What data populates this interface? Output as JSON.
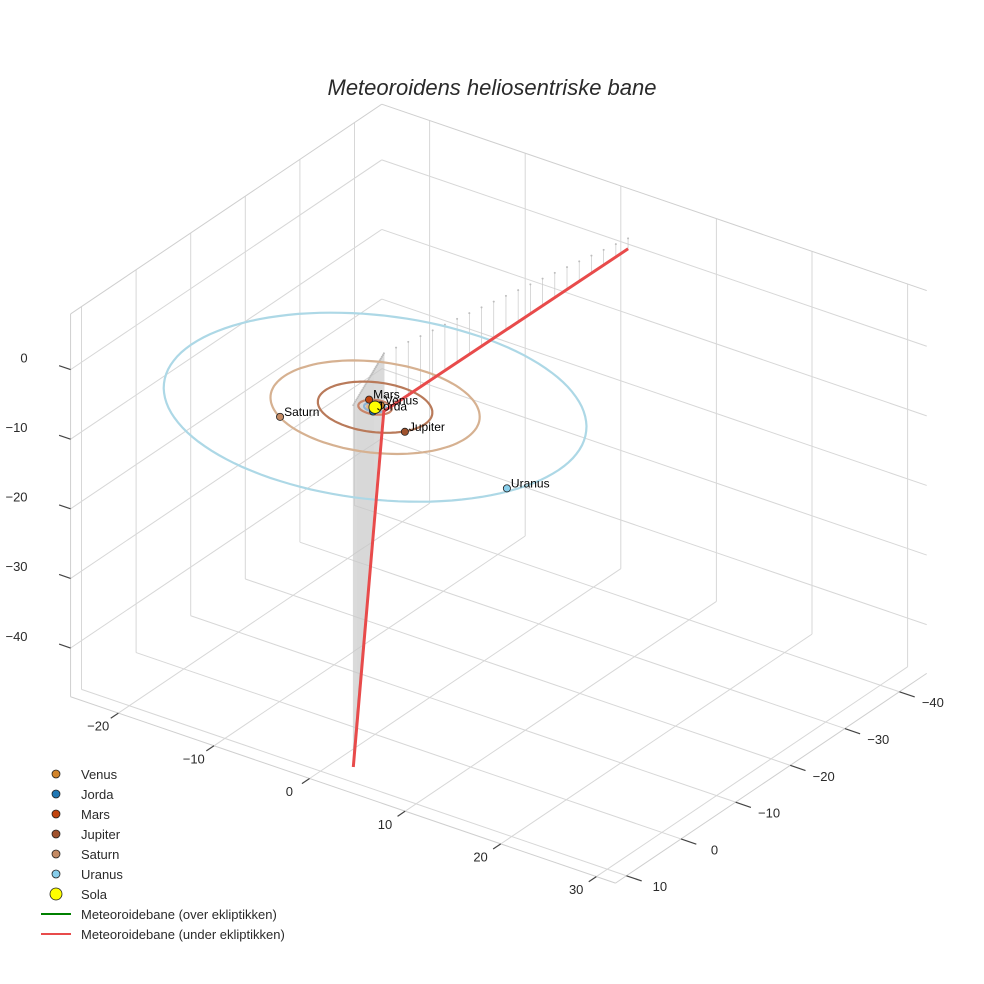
{
  "chart_data": {
    "type": "scatter3d",
    "title": "Meteoroidens heliosentriske bane",
    "axes": {
      "x": {
        "range": [
          -25,
          32
        ],
        "ticks": [
          -20,
          -10,
          0,
          10,
          20,
          30
        ]
      },
      "y": {
        "range": [
          -45,
          12
        ],
        "ticks": [
          -40,
          -30,
          -20,
          -10,
          0,
          10
        ]
      },
      "z": {
        "range": [
          -47,
          8
        ],
        "ticks": [
          -40,
          -30,
          -20,
          -10,
          0
        ]
      },
      "grid": true
    },
    "sun": {
      "name": "Sola",
      "x": 0,
      "y": 0,
      "z": 0,
      "color": "#ffff00"
    },
    "planets": [
      {
        "name": "Venus",
        "x": 0.2,
        "y": -0.7,
        "z": 0,
        "orbit_radius": 0.72,
        "color": "#d2842a"
      },
      {
        "name": "Jorda",
        "x": 0.3,
        "y": 0.9,
        "z": 0,
        "orbit_radius": 1.0,
        "color": "#1f77b4"
      },
      {
        "name": "Mars",
        "x": -1.2,
        "y": -1.0,
        "z": 0,
        "orbit_radius": 1.52,
        "color": "#c1440e"
      },
      {
        "name": "Jupiter",
        "x": 4.6,
        "y": 2.6,
        "z": 0,
        "orbit_radius": 5.2,
        "color": "#a0522d"
      },
      {
        "name": "Saturn",
        "x": -5.6,
        "y": 7.6,
        "z": 0,
        "orbit_radius": 9.5,
        "color": "#c48a63"
      },
      {
        "name": "Uranus",
        "x": 17.5,
        "y": 6.5,
        "z": 0,
        "orbit_radius": 19.2,
        "color": "#87ceeb"
      }
    ],
    "orbit_colors": {
      "Venus": "#e3b98a",
      "Jorda": "#8fb4d4",
      "Mars": "#c9856a",
      "Jupiter": "#b97a5a",
      "Saturn": "#d6b191",
      "Uranus": "#add8e6"
    },
    "trajectory_above": {
      "name": "Meteoroidebane (over ekliptikken)",
      "color": "#008000",
      "points": []
    },
    "trajectory_below": {
      "name": "Meteoroidebane (under ekliptikken)",
      "color": "#e84b4b",
      "points": [
        [
          5.9,
          -36.0,
          6.5
        ],
        [
          0.8,
          -0.2,
          -0.3
        ],
        [
          4.0,
          11.0,
          -44.0
        ]
      ]
    },
    "legend": {
      "position": "bottom-left",
      "items": [
        {
          "label": "Venus",
          "kind": "marker",
          "color": "#d2842a"
        },
        {
          "label": "Jorda",
          "kind": "marker",
          "color": "#1f77b4"
        },
        {
          "label": "Mars",
          "kind": "marker",
          "color": "#c1440e"
        },
        {
          "label": "Jupiter",
          "kind": "marker",
          "color": "#a0522d"
        },
        {
          "label": "Saturn",
          "kind": "marker",
          "color": "#c48a63"
        },
        {
          "label": "Uranus",
          "kind": "marker",
          "color": "#87ceeb"
        },
        {
          "label": "Sola",
          "kind": "big-marker",
          "color": "#ffff00"
        },
        {
          "label": "Meteoroidebane (over ekliptikken)",
          "kind": "line",
          "color": "#008000"
        },
        {
          "label": "Meteoroidebane (under ekliptikken)",
          "kind": "line",
          "color": "#e84b4b"
        }
      ]
    }
  }
}
